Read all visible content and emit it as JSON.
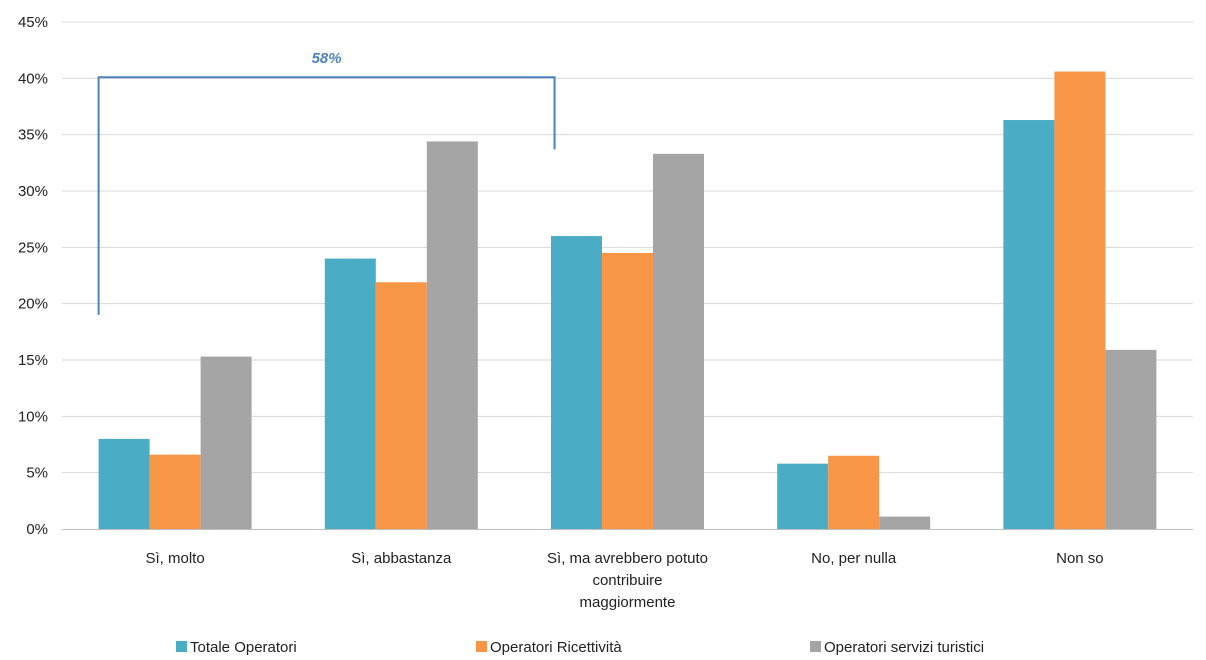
{
  "chart_data": {
    "type": "bar",
    "categories": [
      [
        "Sì, molto"
      ],
      [
        "Sì, abbastanza"
      ],
      [
        "Sì, ma avrebbero potuto",
        "contribuire",
        "maggiormente"
      ],
      [
        "No, per nulla"
      ],
      [
        "Non so"
      ]
    ],
    "series": [
      {
        "name": "Totale Operatori",
        "color": "#4BACC6",
        "values": [
          8.0,
          24.0,
          26.0,
          5.8,
          36.3
        ]
      },
      {
        "name": "Operatori Ricettività",
        "color": "#F79646",
        "values": [
          6.6,
          21.9,
          24.5,
          6.5,
          40.6
        ]
      },
      {
        "name": "Operatori servizi turistici",
        "color": "#A5A5A5",
        "values": [
          15.3,
          34.4,
          33.3,
          1.1,
          15.9
        ]
      }
    ],
    "ylim": [
      0,
      45
    ],
    "ytick_step": 5,
    "ytick_labels": [
      "0%",
      "5%",
      "10%",
      "15%",
      "20%",
      "25%",
      "30%",
      "35%",
      "40%",
      "45%"
    ],
    "grid": true,
    "legend_position": "bottom",
    "annotation": {
      "label": "58%",
      "color": "#4F81BD",
      "spans_categories": [
        0,
        2
      ],
      "left_start_value": 19,
      "right_start_value": 33.7,
      "top_value": 40.1
    }
  }
}
